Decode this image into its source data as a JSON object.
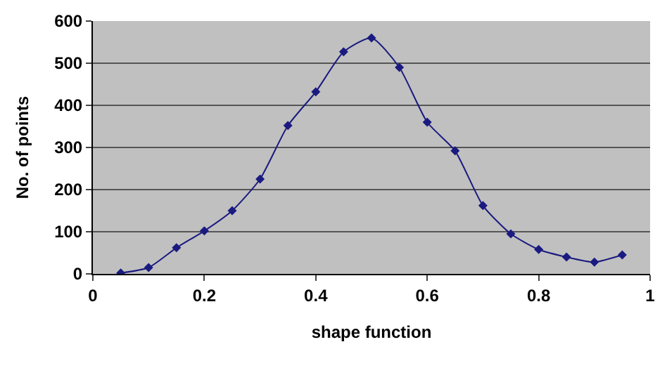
{
  "chart_data": {
    "type": "line",
    "xlabel": "shape function",
    "ylabel": "No. of points",
    "x": [
      0.05,
      0.1,
      0.15,
      0.2,
      0.25,
      0.3,
      0.35,
      0.4,
      0.45,
      0.5,
      0.55,
      0.6,
      0.65,
      0.7,
      0.75,
      0.8,
      0.85,
      0.9,
      0.95
    ],
    "series": [
      {
        "color": "#1a1a80",
        "values": [
          2,
          15,
          62,
          102,
          150,
          225,
          352,
          432,
          527,
          560,
          490,
          360,
          292,
          162,
          95,
          58,
          40,
          28,
          45
        ]
      }
    ],
    "xlim": [
      0,
      1
    ],
    "xticks": [
      0,
      0.2,
      0.4,
      0.6,
      0.8,
      1
    ],
    "ylim": [
      0,
      600
    ],
    "yticks": [
      0,
      100,
      200,
      300,
      400,
      500,
      600
    ],
    "grid": "y",
    "marker": "diamond",
    "line_style": "solid"
  }
}
